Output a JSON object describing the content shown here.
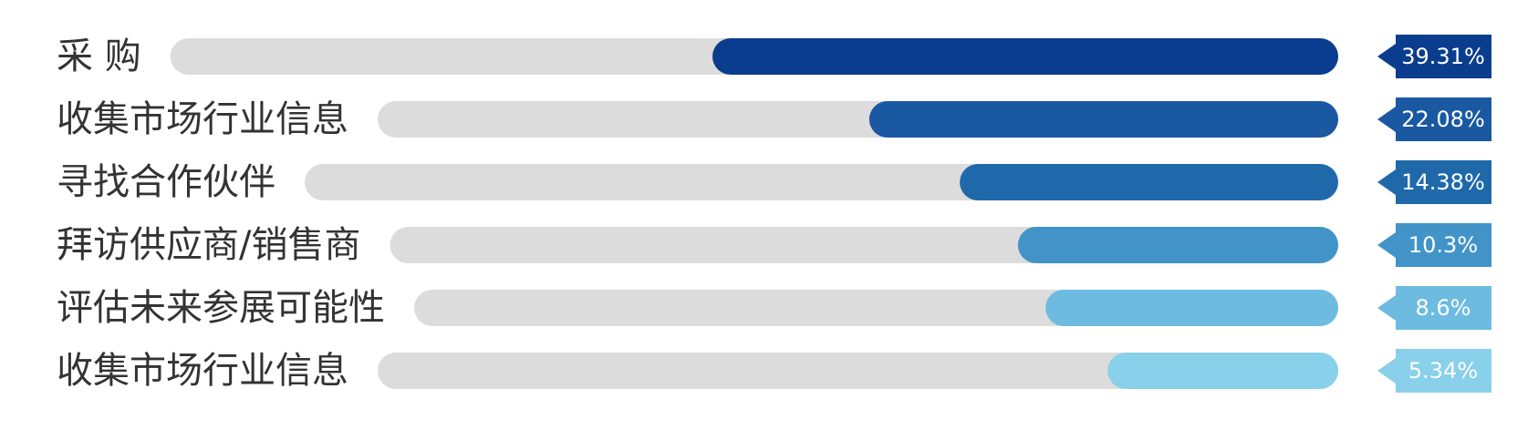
{
  "chart_data": {
    "type": "bar",
    "categories": [
      "采 购",
      "收集市场行业信息",
      "寻找合作伙伴",
      "拜访供应商/销售商",
      "评估未来参展可能性",
      "收集市场行业信息"
    ],
    "values": [
      39.31,
      22.08,
      14.38,
      10.3,
      8.6,
      5.34
    ],
    "value_labels": [
      "39.31%",
      "22.08%",
      "14.38%",
      "10.3%",
      "8.6%",
      "5.34%"
    ],
    "colors": [
      "#0b3d8e",
      "#1a58a2",
      "#1f69ab",
      "#4294c8",
      "#6dbbe1",
      "#89d0ea"
    ],
    "track_color": "#dcdcdc"
  }
}
